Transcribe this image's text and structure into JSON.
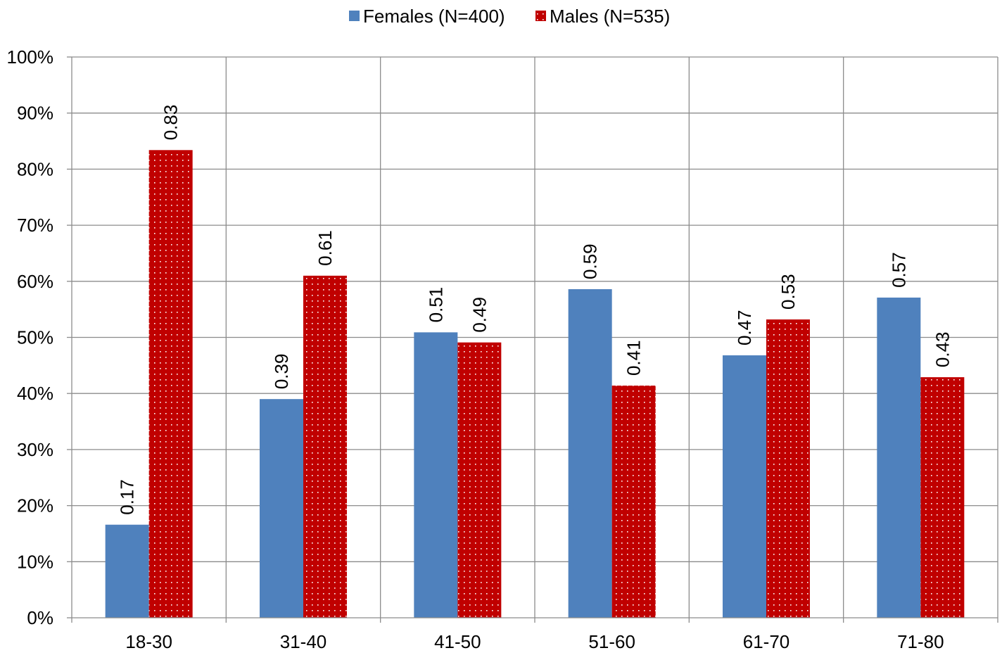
{
  "chart_data": {
    "type": "bar",
    "title": "",
    "xlabel": "",
    "ylabel": "",
    "categories": [
      "18-30",
      "31-40",
      "41-50",
      "51-60",
      "61-70",
      "71-80"
    ],
    "series": [
      {
        "name": "Females (N=400)",
        "values": [
          0.166,
          0.39,
          0.509,
          0.586,
          0.468,
          0.571
        ],
        "labels": [
          "0.17",
          "0.39",
          "0.51",
          "0.59",
          "0.47",
          "0.57"
        ],
        "color": "#4f81bd",
        "pattern": "solid"
      },
      {
        "name": "Males (N=535)",
        "values": [
          0.834,
          0.61,
          0.491,
          0.414,
          0.532,
          0.429
        ],
        "labels": [
          "0.83",
          "0.61",
          "0.49",
          "0.41",
          "0.53",
          "0.43"
        ],
        "color": "#c00000",
        "pattern": "dotted"
      }
    ],
    "ylim": [
      0,
      1
    ],
    "yticks": [
      0,
      0.1,
      0.2,
      0.3,
      0.4,
      0.5,
      0.6,
      0.7,
      0.8,
      0.9,
      1.0
    ],
    "ytick_labels": [
      "0%",
      "10%",
      "20%",
      "30%",
      "40%",
      "50%",
      "60%",
      "70%",
      "80%",
      "90%",
      "100%"
    ],
    "grid": "both",
    "legend_position": "top-center",
    "data_label_orientation": "vertical"
  }
}
